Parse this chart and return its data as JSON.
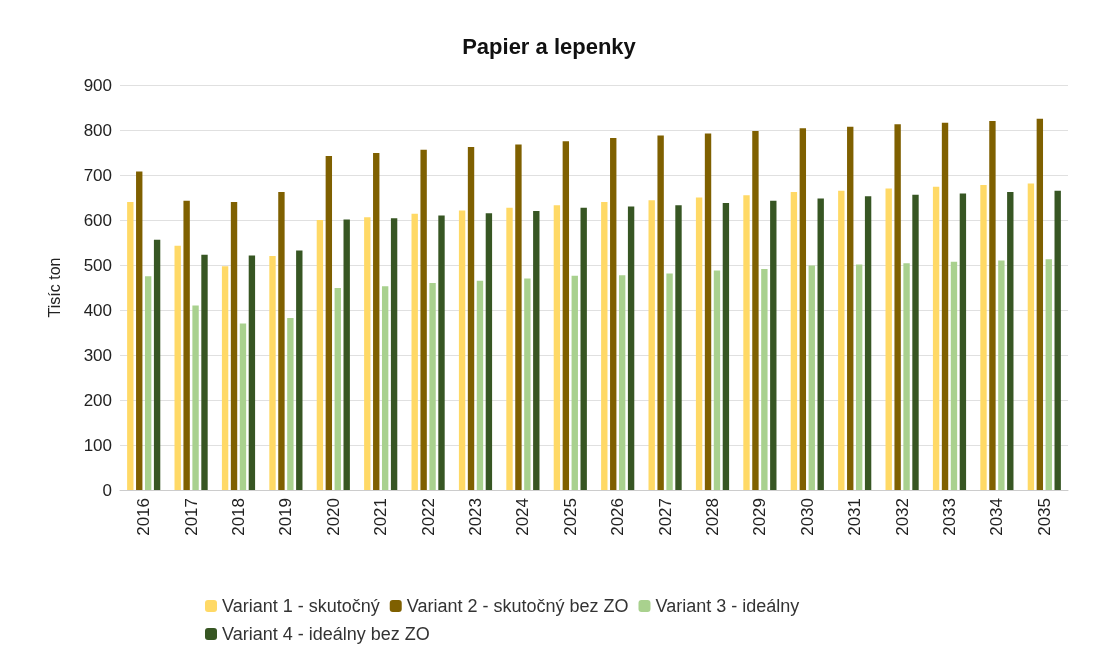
{
  "chart_data": {
    "type": "bar",
    "title": "Papier a lepenky",
    "ylabel": "Tisíc ton",
    "categories": [
      "2016",
      "2017",
      "2018",
      "2019",
      "2020",
      "2021",
      "2022",
      "2023",
      "2024",
      "2025",
      "2026",
      "2027",
      "2028",
      "2029",
      "2030",
      "2031",
      "2032",
      "2033",
      "2034",
      "2035"
    ],
    "series": [
      {
        "name": "Variant 1 - skutočný",
        "color": "#ffd966",
        "values": [
          640,
          543,
          497,
          520,
          600,
          606,
          614,
          621,
          627,
          633,
          640,
          644,
          650,
          655,
          662,
          665,
          670,
          674,
          678,
          681
        ]
      },
      {
        "name": "Variant 2 - skutočný bez ZO",
        "color": "#7f6000",
        "values": [
          708,
          643,
          640,
          662,
          742,
          749,
          756,
          762,
          768,
          775,
          782,
          788,
          792,
          798,
          804,
          807,
          813,
          816,
          820,
          825
        ]
      },
      {
        "name": "Variant 3 - ideálny",
        "color": "#a9d18e",
        "values": [
          475,
          410,
          370,
          382,
          449,
          453,
          460,
          465,
          470,
          476,
          477,
          481,
          488,
          491,
          499,
          501,
          504,
          507,
          510,
          513
        ]
      },
      {
        "name": "Variant 4 - ideálny bez ZO",
        "color": "#375623",
        "values": [
          556,
          523,
          521,
          532,
          601,
          604,
          610,
          615,
          620,
          627,
          630,
          633,
          638,
          643,
          648,
          653,
          656,
          659,
          662,
          665
        ]
      }
    ],
    "ylim": [
      0,
      900
    ],
    "yticks": [
      0,
      100,
      200,
      300,
      400,
      500,
      600,
      700,
      800,
      900
    ],
    "grid": "y",
    "legend": "bottom"
  }
}
